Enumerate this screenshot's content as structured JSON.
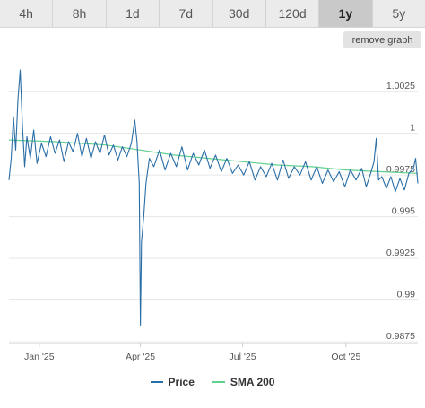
{
  "toolbar": {
    "ranges": [
      "4h",
      "8h",
      "1d",
      "7d",
      "30d",
      "120d",
      "1y",
      "5y"
    ],
    "active_range": "1y",
    "remove_graph_label": "remove graph"
  },
  "chart_data": {
    "type": "line",
    "title": "",
    "xlabel": "",
    "ylabel": "",
    "ylim": [
      0.9874,
      1.0045
    ],
    "x_ticks": [
      {
        "label": "Jan '25",
        "date": "2025-01-01"
      },
      {
        "label": "Apr '25",
        "date": "2025-04-01"
      },
      {
        "label": "Jul '25",
        "date": "2025-07-01"
      },
      {
        "label": "Oct '25",
        "date": "2025-10-01"
      }
    ],
    "y_ticks": [
      {
        "label": "0.9875",
        "value": 0.9875
      },
      {
        "label": "0.99",
        "value": 0.99
      },
      {
        "label": "0.9925",
        "value": 0.9925
      },
      {
        "label": "0.995",
        "value": 0.995
      },
      {
        "label": "0.9975",
        "value": 0.9975
      },
      {
        "label": "1",
        "value": 1.0
      },
      {
        "label": "1.0025",
        "value": 1.0025
      }
    ],
    "grid": {
      "horizontal": true,
      "vertical": false
    },
    "legend": "bottom",
    "series": [
      {
        "name": "Price",
        "color": "#2a6ea6",
        "points": [
          [
            "2024-12-05",
            0.9972
          ],
          [
            "2024-12-07",
            0.9985
          ],
          [
            "2024-12-09",
            1.001
          ],
          [
            "2024-12-11",
            0.999
          ],
          [
            "2024-12-13",
            1.002
          ],
          [
            "2024-12-15",
            1.0038
          ],
          [
            "2024-12-17",
            1.0005
          ],
          [
            "2024-12-19",
            0.998
          ],
          [
            "2024-12-21",
            0.9998
          ],
          [
            "2024-12-24",
            0.9985
          ],
          [
            "2024-12-27",
            1.0002
          ],
          [
            "2024-12-30",
            0.9982
          ],
          [
            "2025-01-03",
            0.9994
          ],
          [
            "2025-01-07",
            0.9986
          ],
          [
            "2025-01-11",
            0.9998
          ],
          [
            "2025-01-15",
            0.9988
          ],
          [
            "2025-01-19",
            0.9996
          ],
          [
            "2025-01-23",
            0.9983
          ],
          [
            "2025-01-27",
            0.9995
          ],
          [
            "2025-01-31",
            0.9989
          ],
          [
            "2025-02-04",
            1.0
          ],
          [
            "2025-02-08",
            0.9986
          ],
          [
            "2025-02-12",
            0.9997
          ],
          [
            "2025-02-16",
            0.9985
          ],
          [
            "2025-02-20",
            0.9995
          ],
          [
            "2025-02-24",
            0.9988
          ],
          [
            "2025-02-28",
            0.9999
          ],
          [
            "2025-03-04",
            0.9987
          ],
          [
            "2025-03-08",
            0.9993
          ],
          [
            "2025-03-12",
            0.9984
          ],
          [
            "2025-03-16",
            0.9992
          ],
          [
            "2025-03-20",
            0.9986
          ],
          [
            "2025-03-24",
            0.9994
          ],
          [
            "2025-03-27",
            1.0008
          ],
          [
            "2025-03-29",
            0.9995
          ],
          [
            "2025-03-31",
            0.997
          ],
          [
            "2025-04-01",
            0.9885
          ],
          [
            "2025-04-02",
            0.9935
          ],
          [
            "2025-04-04",
            0.995
          ],
          [
            "2025-04-06",
            0.997
          ],
          [
            "2025-04-09",
            0.9985
          ],
          [
            "2025-04-13",
            0.998
          ],
          [
            "2025-04-18",
            0.999
          ],
          [
            "2025-04-23",
            0.9978
          ],
          [
            "2025-04-28",
            0.9988
          ],
          [
            "2025-05-03",
            0.998
          ],
          [
            "2025-05-08",
            0.9992
          ],
          [
            "2025-05-13",
            0.9978
          ],
          [
            "2025-05-18",
            0.9988
          ],
          [
            "2025-05-23",
            0.9981
          ],
          [
            "2025-05-28",
            0.999
          ],
          [
            "2025-06-02",
            0.9979
          ],
          [
            "2025-06-07",
            0.9987
          ],
          [
            "2025-06-12",
            0.9977
          ],
          [
            "2025-06-17",
            0.9985
          ],
          [
            "2025-06-22",
            0.9976
          ],
          [
            "2025-06-27",
            0.9981
          ],
          [
            "2025-07-02",
            0.9975
          ],
          [
            "2025-07-07",
            0.9983
          ],
          [
            "2025-07-12",
            0.9972
          ],
          [
            "2025-07-17",
            0.998
          ],
          [
            "2025-07-22",
            0.9974
          ],
          [
            "2025-07-27",
            0.9982
          ],
          [
            "2025-08-01",
            0.9972
          ],
          [
            "2025-08-06",
            0.9984
          ],
          [
            "2025-08-11",
            0.9973
          ],
          [
            "2025-08-16",
            0.998
          ],
          [
            "2025-08-21",
            0.9975
          ],
          [
            "2025-08-26",
            0.9983
          ],
          [
            "2025-08-31",
            0.9972
          ],
          [
            "2025-09-05",
            0.998
          ],
          [
            "2025-09-10",
            0.997
          ],
          [
            "2025-09-15",
            0.9978
          ],
          [
            "2025-09-20",
            0.9971
          ],
          [
            "2025-09-25",
            0.9977
          ],
          [
            "2025-09-30",
            0.9968
          ],
          [
            "2025-10-05",
            0.9978
          ],
          [
            "2025-10-10",
            0.9972
          ],
          [
            "2025-10-15",
            0.9979
          ],
          [
            "2025-10-19",
            0.9968
          ],
          [
            "2025-10-23",
            0.9976
          ],
          [
            "2025-10-26",
            0.9983
          ],
          [
            "2025-10-28",
            0.9997
          ],
          [
            "2025-10-30",
            0.9972
          ],
          [
            "2025-11-02",
            0.9974
          ],
          [
            "2025-11-06",
            0.9967
          ],
          [
            "2025-11-10",
            0.9974
          ],
          [
            "2025-11-14",
            0.9965
          ],
          [
            "2025-11-18",
            0.9973
          ],
          [
            "2025-11-22",
            0.9966
          ],
          [
            "2025-11-26",
            0.9976
          ],
          [
            "2025-11-30",
            0.9979
          ],
          [
            "2025-12-02",
            0.9985
          ],
          [
            "2025-12-04",
            0.997
          ]
        ]
      },
      {
        "name": "SMA 200",
        "color": "#5fd18e",
        "points": [
          [
            "2024-12-05",
            0.9996
          ],
          [
            "2025-01-15",
            0.9995
          ],
          [
            "2025-03-01",
            0.9993
          ],
          [
            "2025-04-01",
            0.999
          ],
          [
            "2025-05-01",
            0.9987
          ],
          [
            "2025-06-01",
            0.9985
          ],
          [
            "2025-07-01",
            0.9983
          ],
          [
            "2025-08-01",
            0.9981
          ],
          [
            "2025-09-01",
            0.998
          ],
          [
            "2025-10-01",
            0.9978
          ],
          [
            "2025-11-01",
            0.9977
          ],
          [
            "2025-12-04",
            0.9976
          ]
        ]
      }
    ]
  }
}
